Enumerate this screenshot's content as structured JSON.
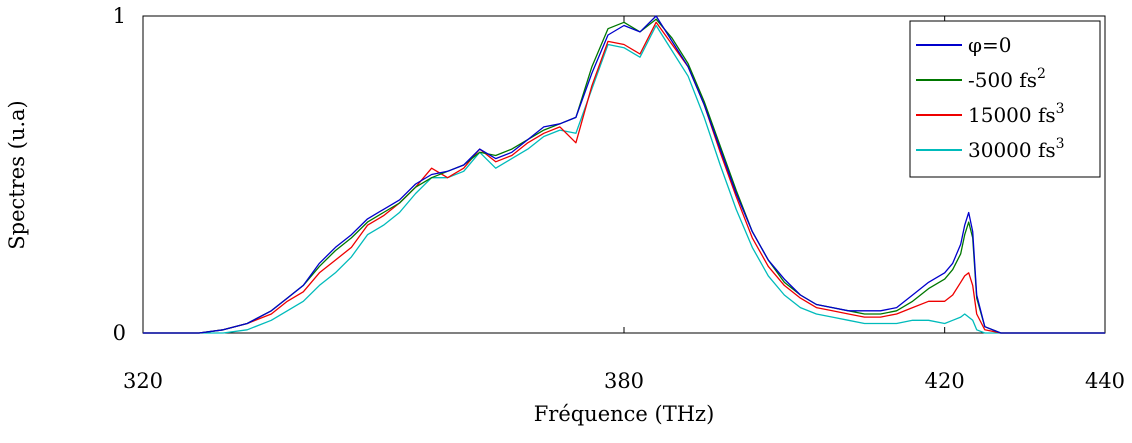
{
  "chart_data": {
    "type": "line",
    "title": "",
    "xlabel": "Fréquence (THz)",
    "ylabel": "Spectres (u.a)",
    "xlim": [
      320,
      440
    ],
    "ylim": [
      0,
      1
    ],
    "xticks": [
      320,
      380,
      420,
      440
    ],
    "yticks": [
      0,
      1
    ],
    "grid": false,
    "legend_position": "top-right",
    "series": [
      {
        "name": "φ=0",
        "legend_main": "φ=0",
        "legend_sup": "",
        "color": "#0000cc",
        "x": [
          320,
          327,
          330,
          333,
          336,
          338,
          340,
          342,
          344,
          346,
          348,
          350,
          352,
          354,
          356,
          358,
          360,
          362,
          364,
          366,
          368,
          370,
          372,
          374,
          376,
          378,
          380,
          382,
          384,
          386,
          388,
          390,
          392,
          394,
          396,
          398,
          400,
          402,
          404,
          406,
          408,
          410,
          412,
          414,
          416,
          418,
          420,
          421,
          422,
          422.5,
          423,
          423.5,
          424,
          425,
          427,
          440
        ],
        "values": [
          0,
          0,
          0.01,
          0.03,
          0.07,
          0.11,
          0.15,
          0.22,
          0.27,
          0.31,
          0.36,
          0.39,
          0.42,
          0.47,
          0.5,
          0.51,
          0.53,
          0.58,
          0.55,
          0.57,
          0.61,
          0.65,
          0.66,
          0.68,
          0.82,
          0.94,
          0.97,
          0.95,
          1.0,
          0.92,
          0.84,
          0.72,
          0.58,
          0.44,
          0.32,
          0.23,
          0.17,
          0.12,
          0.09,
          0.08,
          0.07,
          0.07,
          0.07,
          0.08,
          0.12,
          0.16,
          0.19,
          0.22,
          0.28,
          0.34,
          0.38,
          0.32,
          0.12,
          0.02,
          0,
          0
        ]
      },
      {
        "name": "-500 fs2",
        "legend_main": "-500 fs",
        "legend_sup": "2",
        "color": "#007700",
        "x": [
          320,
          327,
          330,
          333,
          336,
          338,
          340,
          342,
          344,
          346,
          348,
          350,
          352,
          354,
          356,
          358,
          360,
          362,
          364,
          366,
          368,
          370,
          372,
          374,
          376,
          378,
          380,
          382,
          384,
          386,
          388,
          390,
          392,
          394,
          396,
          398,
          400,
          402,
          404,
          406,
          408,
          410,
          412,
          414,
          416,
          418,
          420,
          421,
          422,
          422.5,
          423,
          423.5,
          424,
          425,
          427,
          440
        ],
        "values": [
          0,
          0,
          0.01,
          0.03,
          0.07,
          0.11,
          0.15,
          0.21,
          0.26,
          0.3,
          0.35,
          0.38,
          0.41,
          0.46,
          0.49,
          0.51,
          0.53,
          0.57,
          0.56,
          0.58,
          0.61,
          0.64,
          0.66,
          0.68,
          0.84,
          0.96,
          0.98,
          0.95,
          0.99,
          0.93,
          0.85,
          0.73,
          0.59,
          0.45,
          0.32,
          0.23,
          0.16,
          0.12,
          0.09,
          0.08,
          0.07,
          0.06,
          0.06,
          0.07,
          0.1,
          0.14,
          0.17,
          0.2,
          0.25,
          0.31,
          0.35,
          0.3,
          0.11,
          0.02,
          0,
          0
        ]
      },
      {
        "name": "15000 fs3",
        "legend_main": "15000 fs",
        "legend_sup": "3",
        "color": "#ee0000",
        "x": [
          320,
          327,
          330,
          333,
          336,
          338,
          340,
          342,
          344,
          346,
          348,
          350,
          352,
          354,
          356,
          358,
          360,
          362,
          364,
          366,
          368,
          370,
          372,
          374,
          376,
          378,
          380,
          382,
          384,
          386,
          388,
          390,
          392,
          394,
          396,
          398,
          400,
          402,
          404,
          406,
          408,
          410,
          412,
          414,
          416,
          418,
          420,
          421,
          422,
          422.5,
          423,
          423.5,
          424,
          425,
          427,
          440
        ],
        "values": [
          0,
          0,
          0.01,
          0.03,
          0.06,
          0.1,
          0.13,
          0.19,
          0.23,
          0.27,
          0.34,
          0.37,
          0.41,
          0.46,
          0.52,
          0.49,
          0.52,
          0.58,
          0.54,
          0.56,
          0.6,
          0.63,
          0.65,
          0.6,
          0.78,
          0.92,
          0.91,
          0.88,
          0.98,
          0.91,
          0.84,
          0.72,
          0.57,
          0.43,
          0.3,
          0.21,
          0.15,
          0.11,
          0.08,
          0.07,
          0.06,
          0.05,
          0.05,
          0.06,
          0.08,
          0.1,
          0.1,
          0.12,
          0.16,
          0.18,
          0.19,
          0.15,
          0.06,
          0.01,
          0,
          0
        ]
      },
      {
        "name": "30000 fs3",
        "legend_main": "30000 fs",
        "legend_sup": "3",
        "color": "#00bbbb",
        "x": [
          320,
          327,
          330,
          333,
          336,
          338,
          340,
          342,
          344,
          346,
          348,
          350,
          352,
          354,
          356,
          358,
          360,
          362,
          364,
          366,
          368,
          370,
          372,
          374,
          376,
          378,
          380,
          382,
          384,
          386,
          388,
          390,
          392,
          394,
          396,
          398,
          400,
          402,
          404,
          406,
          408,
          410,
          412,
          414,
          416,
          418,
          420,
          421,
          422,
          422.5,
          423,
          423.5,
          424,
          425,
          427,
          440
        ],
        "values": [
          0,
          0,
          0.0,
          0.01,
          0.04,
          0.07,
          0.1,
          0.15,
          0.19,
          0.24,
          0.31,
          0.34,
          0.38,
          0.44,
          0.49,
          0.49,
          0.51,
          0.57,
          0.52,
          0.55,
          0.58,
          0.62,
          0.64,
          0.63,
          0.77,
          0.91,
          0.9,
          0.87,
          0.97,
          0.89,
          0.81,
          0.68,
          0.53,
          0.39,
          0.27,
          0.18,
          0.12,
          0.08,
          0.06,
          0.05,
          0.04,
          0.03,
          0.03,
          0.03,
          0.04,
          0.04,
          0.03,
          0.04,
          0.05,
          0.06,
          0.05,
          0.04,
          0.01,
          0,
          0,
          0
        ]
      }
    ]
  }
}
